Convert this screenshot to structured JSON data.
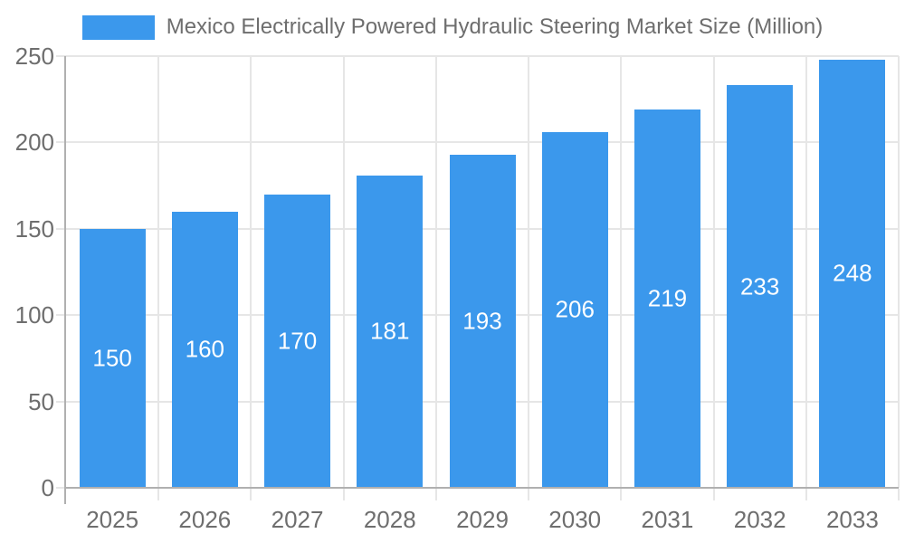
{
  "chart_data": {
    "type": "bar",
    "title": "Mexico Electrically Powered Hydraulic Steering Market Size (Million)",
    "categories": [
      "2025",
      "2026",
      "2027",
      "2028",
      "2029",
      "2030",
      "2031",
      "2032",
      "2033"
    ],
    "values": [
      150,
      160,
      170,
      181,
      193,
      206,
      219,
      233,
      248
    ],
    "xlabel": "",
    "ylabel": "",
    "ylim": [
      0,
      250
    ],
    "yticks": [
      0,
      50,
      100,
      150,
      200,
      250
    ],
    "grid": true,
    "legend_position": "top",
    "value_labels": "inside-center"
  },
  "colors": {
    "bar": "#3b98ec",
    "grid_line": "#e6e6e6",
    "axis_line": "#b0b0b0",
    "tick_label": "#6e6e6e",
    "legend_label": "#6e6e6e",
    "value_label": "#ffffff",
    "background": "#ffffff"
  }
}
